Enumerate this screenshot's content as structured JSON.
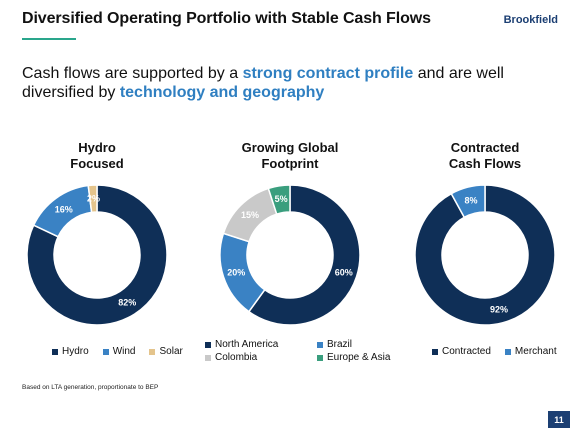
{
  "header": {
    "title": "Diversified Operating Portfolio with Stable Cash Flows",
    "brand": "Brookfield"
  },
  "headline": {
    "part1": "Cash flows are supported by a ",
    "emph1": "strong contract profile",
    "part2": " and are well diversified by ",
    "emph2": "technology and geography"
  },
  "colors": {
    "navy": "#0f2f57",
    "blue": "#3a82c4",
    "tan": "#e4c48c",
    "gray": "#c9c9c9",
    "green": "#3a9e7e",
    "accent": "#2f7fc1"
  },
  "chart_data": [
    {
      "type": "pie",
      "title_line1": "Hydro",
      "title_line2": "Focused",
      "categories": [
        "Hydro",
        "Wind",
        "Solar"
      ],
      "values": [
        82,
        16,
        2
      ],
      "labels": [
        "82%",
        "16%",
        "2%"
      ],
      "colors": [
        "#0f2f57",
        "#3a82c4",
        "#e4c48c"
      ]
    },
    {
      "type": "pie",
      "title_line1": "Growing Global",
      "title_line2": "Footprint",
      "categories": [
        "North America",
        "Brazil",
        "Colombia",
        "Europe & Asia"
      ],
      "values": [
        60,
        20,
        15,
        5
      ],
      "labels": [
        "60%",
        "20%",
        "15%",
        "5%"
      ],
      "colors": [
        "#0f2f57",
        "#3a82c4",
        "#c9c9c9",
        "#3a9e7e"
      ]
    },
    {
      "type": "pie",
      "title_line1": "Contracted",
      "title_line2": "Cash Flows",
      "categories": [
        "Contracted",
        "Merchant"
      ],
      "values": [
        92,
        8
      ],
      "labels": [
        "92%",
        "8%"
      ],
      "colors": [
        "#0f2f57",
        "#3a82c4"
      ]
    }
  ],
  "footnote": "Based on LTA generation, proportionate to BEP",
  "page_number": "11"
}
